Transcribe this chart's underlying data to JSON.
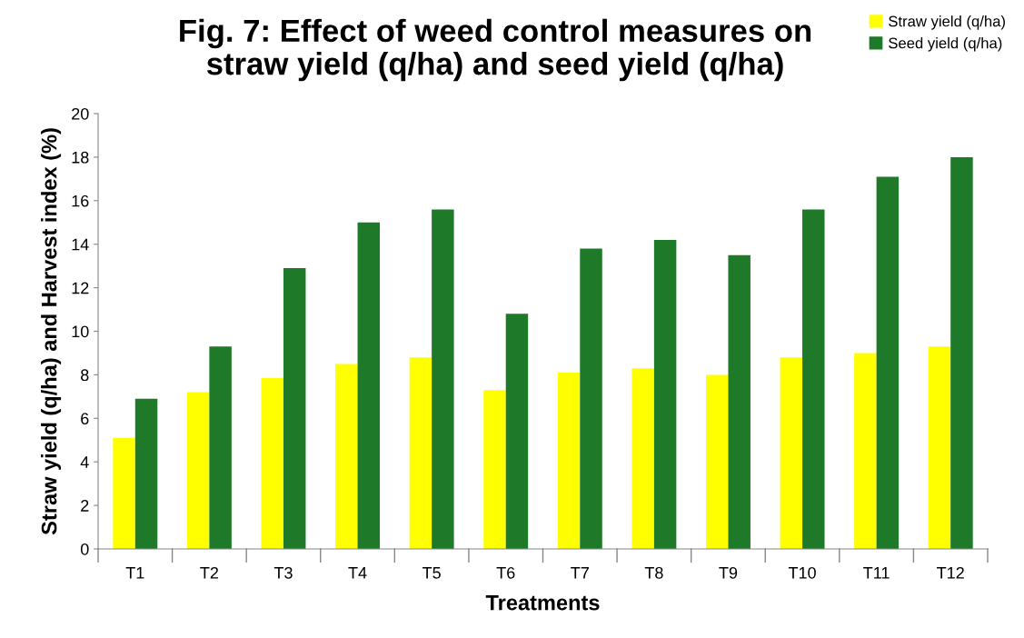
{
  "chart_data": {
    "type": "bar",
    "title": "Fig. 7: Effect of weed control measures on\nstraw yield (q/ha) and seed yield (q/ha)",
    "xlabel": "Treatments",
    "ylabel": "Straw yield (q/ha) and Harvest index (%)",
    "categories": [
      "T1",
      "T2",
      "T3",
      "T4",
      "T5",
      "T6",
      "T7",
      "T8",
      "T9",
      "T10",
      "T11",
      "T12"
    ],
    "series": [
      {
        "name": "Straw yield (q/ha)",
        "color": "#ffff00",
        "values": [
          5.1,
          7.2,
          7.85,
          8.5,
          8.8,
          7.3,
          8.1,
          8.3,
          8.0,
          8.8,
          9.0,
          9.3
        ]
      },
      {
        "name": "Seed yield (q/ha)",
        "color": "#1e7a28",
        "values": [
          6.9,
          9.3,
          12.9,
          15.0,
          15.6,
          10.8,
          13.8,
          14.2,
          13.5,
          15.6,
          17.1,
          18.0
        ]
      }
    ],
    "ylim": [
      0,
      20
    ],
    "yticks": [
      0,
      2,
      4,
      6,
      8,
      10,
      12,
      14,
      16,
      18,
      20
    ],
    "grid": false,
    "legend": "top right"
  }
}
